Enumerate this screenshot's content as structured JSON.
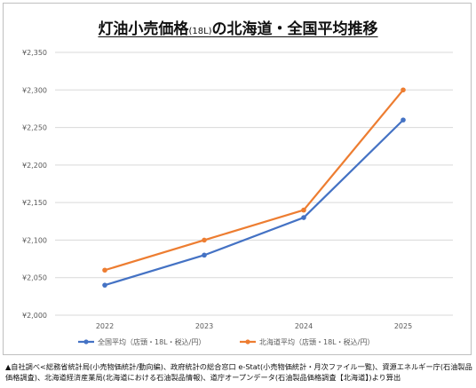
{
  "title": {
    "main1": "灯油小売価格",
    "paren": "(18L)",
    "main2": "の北海道・全国平均推移"
  },
  "chart_data": {
    "type": "line",
    "categories": [
      "2022",
      "2023",
      "2024",
      "2025"
    ],
    "series": [
      {
        "name": "全国平均（店頭・18L・税込/円）",
        "color": "#4472C4",
        "values": [
          2040,
          2080,
          2130,
          2260
        ]
      },
      {
        "name": "北海道平均（店頭・18L・税込/円）",
        "color": "#ED7D31",
        "values": [
          2060,
          2100,
          2140,
          2300
        ]
      }
    ],
    "yticks": [
      "¥2,000",
      "¥2,050",
      "¥2,100",
      "¥2,150",
      "¥2,200",
      "¥2,250",
      "¥2,300",
      "¥2,350"
    ],
    "ylim": [
      2000,
      2350
    ],
    "grid": true,
    "legend_position": "bottom"
  },
  "footnote": "▲自社調べ<総務省統計局(小売物価統計/動向編)、政府統計の総合窓口 e-Stat(小売物価統計・月次ファイル一覧)、資源エネルギー庁(石油製品価格調査)、北海道経済産業局(北海道における石油製品情報)、道庁オープンデータ(石油製品価格調査【北海道】)より算出"
}
